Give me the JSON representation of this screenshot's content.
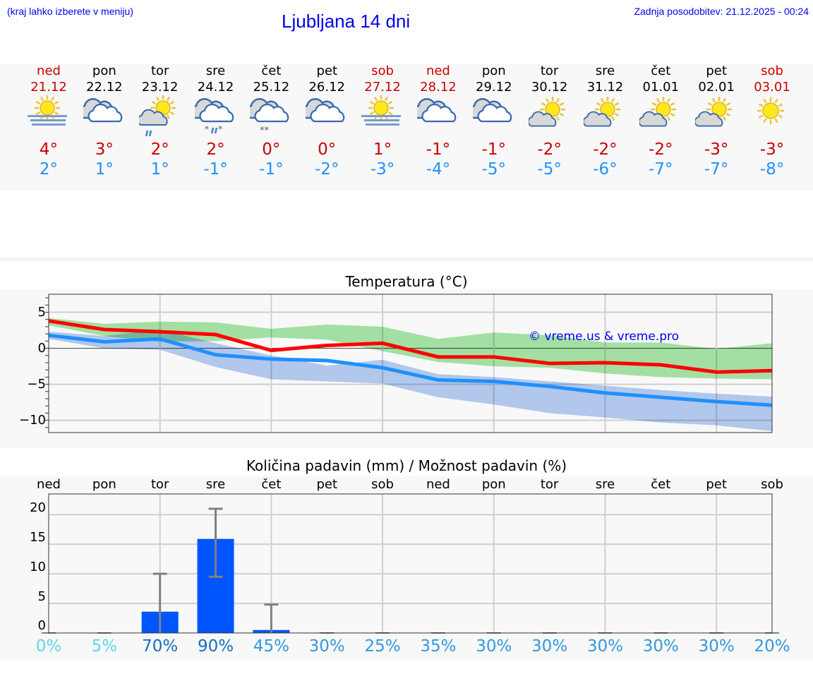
{
  "header": {
    "hint": "(kraj lahko izberete v meniju)",
    "title": "Ljubljana 14 dni",
    "updated": "Zadnja posodobitev: 21.12.2025 - 00:24"
  },
  "colors": {
    "weekend": "#cc0000",
    "weekday": "#000000",
    "max": "#ff0000",
    "min": "#1e90ff",
    "link": "#0000ee",
    "bar": "#0055ff"
  },
  "days": [
    {
      "name": "ned",
      "date": "21.12",
      "weekend": true,
      "icon": "fog-sun-icon",
      "max": "4°",
      "min": "2°"
    },
    {
      "name": "pon",
      "date": "22.12",
      "weekend": false,
      "icon": "cloudy-icon",
      "max": "3°",
      "min": "1°"
    },
    {
      "name": "tor",
      "date": "23.12",
      "weekend": false,
      "icon": "sun-cloud-rain-icon",
      "max": "2°",
      "min": "1°"
    },
    {
      "name": "sre",
      "date": "24.12",
      "weekend": false,
      "icon": "cloud-sleet-icon",
      "max": "2°",
      "min": "-1°"
    },
    {
      "name": "čet",
      "date": "25.12",
      "weekend": false,
      "icon": "cloud-snow-icon",
      "max": "0°",
      "min": "-1°"
    },
    {
      "name": "pet",
      "date": "26.12",
      "weekend": false,
      "icon": "cloudy-icon",
      "max": "0°",
      "min": "-2°"
    },
    {
      "name": "sob",
      "date": "27.12",
      "weekend": true,
      "icon": "fog-sun-icon",
      "max": "1°",
      "min": "-3°"
    },
    {
      "name": "ned",
      "date": "28.12",
      "weekend": true,
      "icon": "cloudy-icon",
      "max": "-1°",
      "min": "-4°"
    },
    {
      "name": "pon",
      "date": "29.12",
      "weekend": false,
      "icon": "cloudy-icon",
      "max": "-1°",
      "min": "-5°"
    },
    {
      "name": "tor",
      "date": "30.12",
      "weekend": false,
      "icon": "sun-cloud-icon",
      "max": "-2°",
      "min": "-5°"
    },
    {
      "name": "sre",
      "date": "31.12",
      "weekend": false,
      "icon": "sun-cloud-icon",
      "max": "-2°",
      "min": "-6°"
    },
    {
      "name": "čet",
      "date": "01.01",
      "weekend": false,
      "icon": "sun-cloud-icon",
      "max": "-2°",
      "min": "-7°"
    },
    {
      "name": "pet",
      "date": "02.01",
      "weekend": false,
      "icon": "sun-cloud-icon",
      "max": "-3°",
      "min": "-7°"
    },
    {
      "name": "sob",
      "date": "03.01",
      "weekend": true,
      "icon": "sun-icon",
      "max": "-3°",
      "min": "-8°"
    }
  ],
  "chart_data": [
    {
      "type": "line",
      "title": "Temperatura (°C)",
      "x": [
        "21.12",
        "22.12",
        "23.12",
        "24.12",
        "25.12",
        "26.12",
        "27.12",
        "28.12",
        "29.12",
        "30.12",
        "31.12",
        "01.01",
        "02.01",
        "03.01"
      ],
      "ylim": [
        -11.7,
        7.5
      ],
      "yticks": [
        5,
        0,
        -5,
        -10
      ],
      "ytick_labels": [
        "5",
        "0",
        "−5",
        "−10"
      ],
      "grid": true,
      "watermark": "© vreme.us & vreme.pro",
      "series": [
        {
          "values": [
            3.8,
            2.6,
            2.3,
            1.9,
            -0.3,
            0.4,
            0.7,
            -1.2,
            -1.2,
            -2.1,
            -2.0,
            -2.3,
            -3.3,
            -3.1
          ],
          "color": "#ff0000",
          "band_high": [
            4.2,
            3.4,
            3.7,
            3.6,
            2.7,
            3.3,
            3.0,
            1.3,
            2.2,
            1.8,
            0.8,
            0.8,
            -0.1,
            0.7
          ],
          "band_low": [
            3.2,
            1.7,
            0.9,
            1.0,
            1.5,
            1.2,
            -0.4,
            -1.9,
            -2.5,
            -2.7,
            -3.5,
            -4.0,
            -4.2,
            -4.3
          ],
          "band_color": "#a8e6a8"
        },
        {
          "values": [
            1.8,
            0.9,
            1.3,
            -0.9,
            -1.5,
            -1.7,
            -2.7,
            -4.4,
            -4.6,
            -5.3,
            -6.2,
            -6.8,
            -7.4,
            -7.9
          ],
          "color": "#1e90ff",
          "band_high": [
            2.3,
            1.7,
            2.6,
            0.7,
            -1.0,
            -2.4,
            -1.6,
            -3.6,
            -4.0,
            -4.6,
            -5.2,
            -5.8,
            -6.3,
            -6.7
          ],
          "band_low": [
            1.3,
            0.0,
            -0.2,
            -2.6,
            -4.3,
            -4.6,
            -4.9,
            -6.8,
            -7.8,
            -9.0,
            -9.6,
            -10.3,
            -10.7,
            -11.5
          ],
          "band_color": "#a9c4f0"
        }
      ]
    },
    {
      "type": "bar",
      "title": "Količina padavin (mm) / Možnost padavin (%)",
      "categories": [
        "ned",
        "pon",
        "tor",
        "sre",
        "čet",
        "pet",
        "sob",
        "ned",
        "pon",
        "tor",
        "sre",
        "čet",
        "pet",
        "sob"
      ],
      "values": [
        0,
        0,
        3.6,
        15.9,
        0.5,
        0,
        0,
        0,
        0,
        0,
        0,
        0,
        0,
        0
      ],
      "error_low": [
        0,
        0,
        0,
        9.5,
        0,
        0,
        0,
        0,
        0,
        0,
        0,
        0,
        0,
        0
      ],
      "error_high": [
        0,
        0,
        10,
        21,
        4.8,
        0,
        0,
        0,
        0,
        0,
        0,
        0,
        0,
        0
      ],
      "probability": [
        "0%",
        "5%",
        "70%",
        "90%",
        "45%",
        "30%",
        "25%",
        "35%",
        "30%",
        "30%",
        "30%",
        "30%",
        "30%",
        "20%"
      ],
      "probability_colors": [
        "#5dd8e8",
        "#5dd8e8",
        "#1a6bbf",
        "#1a6bbf",
        "#3399dd",
        "#3399dd",
        "#3399dd",
        "#3399dd",
        "#3399dd",
        "#3399dd",
        "#3399dd",
        "#3399dd",
        "#3399dd",
        "#3399dd"
      ],
      "ylim": [
        0,
        23.5
      ],
      "yticks": [
        20,
        15,
        10,
        5,
        0
      ],
      "ytick_labels": [
        "20",
        "15",
        "10",
        "5",
        "0"
      ],
      "grid": true
    }
  ]
}
